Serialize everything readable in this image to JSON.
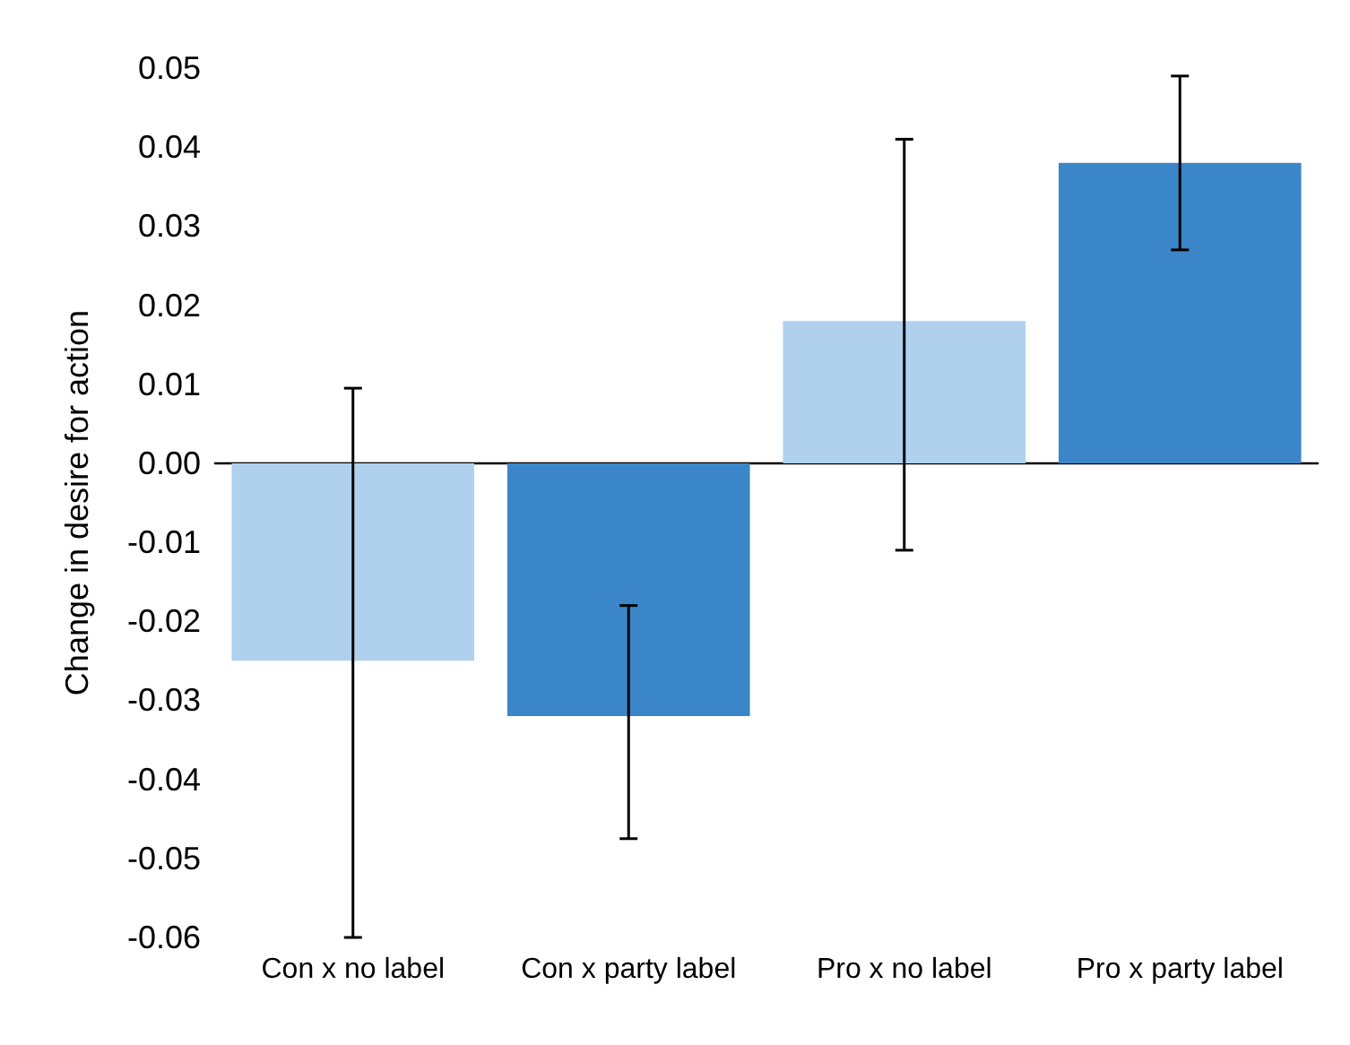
{
  "chart_data": {
    "type": "bar",
    "ylabel": "Change in desire for action",
    "categories": [
      "Con x no label",
      "Con x party label",
      "Pro x no label",
      "Pro x party label"
    ],
    "values": [
      -0.025,
      -0.032,
      0.018,
      0.038
    ],
    "colors": [
      "#afd1ee",
      "#3a86c8",
      "#afd1ee",
      "#3a86c8"
    ],
    "errors": [
      [
        -0.06,
        0.0095
      ],
      [
        -0.0475,
        -0.018
      ],
      [
        -0.011,
        0.041
      ],
      [
        0.027,
        0.049
      ]
    ],
    "ylim": [
      -0.06,
      0.05
    ],
    "yticks": [
      {
        "value": -0.06,
        "label": "-0.06"
      },
      {
        "value": -0.05,
        "label": "-0.05"
      },
      {
        "value": -0.04,
        "label": "-0.04"
      },
      {
        "value": -0.03,
        "label": "-0.03"
      },
      {
        "value": -0.02,
        "label": "-0.02"
      },
      {
        "value": -0.01,
        "label": "-0.01"
      },
      {
        "value": 0,
        "label": "0.00"
      },
      {
        "value": 0.01,
        "label": "0.01"
      },
      {
        "value": 0.02,
        "label": "0.02"
      },
      {
        "value": 0.03,
        "label": "0.03"
      },
      {
        "value": 0.04,
        "label": "0.04"
      },
      {
        "value": 0.05,
        "label": "0.05"
      }
    ]
  }
}
